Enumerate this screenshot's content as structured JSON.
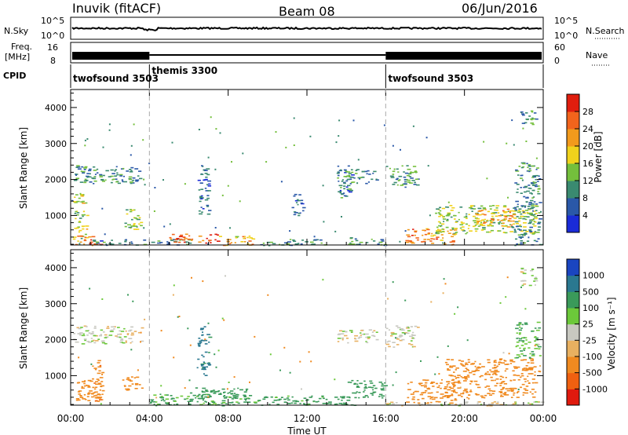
{
  "header": {
    "station": "Inuvik (fitACF)",
    "beam": "Beam 08",
    "date": "06/Jun/2016"
  },
  "noise_panel": {
    "left_label": "N.Sky",
    "right_label": "N.Search",
    "left_ticks": [
      "10^5",
      "10^0"
    ],
    "right_ticks": [
      "10^5",
      "10^0"
    ],
    "right_legend_style": "dotted"
  },
  "freq_panel": {
    "left_label_line1": "Freq.",
    "left_label_line2": "[MHz]",
    "right_label": "Nave",
    "left_ticks": [
      "16",
      "8"
    ],
    "right_ticks": [
      "60",
      "0"
    ],
    "right_legend_style": "dotted"
  },
  "cpid_panel": {
    "label": "CPID",
    "segments": [
      {
        "name": "twofsound 3503",
        "start_hour": 0,
        "end_hour": 4
      },
      {
        "name": "themis 3300",
        "start_hour": 4,
        "end_hour": 16
      },
      {
        "name": "twofsound 3503",
        "start_hour": 16,
        "end_hour": 24
      }
    ]
  },
  "x_axis": {
    "title": "Time UT",
    "ticks": [
      "00:00",
      "04:00",
      "08:00",
      "12:00",
      "16:00",
      "20:00",
      "00:00"
    ],
    "tick_hours": [
      0,
      4,
      8,
      12,
      16,
      20,
      24
    ],
    "range_hours": [
      0,
      24
    ]
  },
  "chart_data": [
    {
      "type": "heatmap",
      "panel": "power",
      "ylabel": "Slant Range [km]",
      "yticks": [
        1000,
        2000,
        3000,
        4000
      ],
      "ylim": [
        180,
        4500
      ],
      "xlim_hours": [
        0,
        24
      ],
      "colorbar_label": "Power [dB]",
      "colorbar_ticks": [
        4,
        8,
        12,
        16,
        20,
        24,
        28
      ],
      "colorbar_range": [
        0,
        32
      ],
      "colorbar_colors": [
        "#1a2bd8",
        "#2a58a8",
        "#3a8a70",
        "#74bf3c",
        "#f0d21c",
        "#f29a1c",
        "#f2641c",
        "#e01e0e"
      ],
      "regions": [
        {
          "x": [
            0.1,
            3.6
          ],
          "y": [
            1900,
            2400
          ],
          "value": 10
        },
        {
          "x": [
            0.1,
            0.8
          ],
          "y": [
            300,
            1600
          ],
          "value": 16
        },
        {
          "x": [
            0.2,
            1.5
          ],
          "y": [
            180,
            450
          ],
          "value": 26
        },
        {
          "x": [
            1.0,
            3.8
          ],
          "y": [
            180,
            350
          ],
          "value": 8
        },
        {
          "x": [
            2.7,
            3.6
          ],
          "y": [
            600,
            1200
          ],
          "value": 14
        },
        {
          "x": [
            4.0,
            6.0
          ],
          "y": [
            180,
            350
          ],
          "value": 9
        },
        {
          "x": [
            5.0,
            7.5
          ],
          "y": [
            250,
            500
          ],
          "value": 26
        },
        {
          "x": [
            7.5,
            9.5
          ],
          "y": [
            180,
            450
          ],
          "value": 20
        },
        {
          "x": [
            6.4,
            7.0
          ],
          "y": [
            1000,
            2400
          ],
          "value": 7
        },
        {
          "x": [
            9.5,
            13.0
          ],
          "y": [
            180,
            350
          ],
          "value": 9
        },
        {
          "x": [
            11.2,
            11.8
          ],
          "y": [
            1000,
            1600
          ],
          "value": 6
        },
        {
          "x": [
            13.5,
            14.3
          ],
          "y": [
            1500,
            2400
          ],
          "value": 8
        },
        {
          "x": [
            14.0,
            16.0
          ],
          "y": [
            180,
            400
          ],
          "value": 11
        },
        {
          "x": [
            13.5,
            15.5
          ],
          "y": [
            1900,
            2300
          ],
          "value": 10
        },
        {
          "x": [
            16.0,
            17.6
          ],
          "y": [
            1800,
            2400
          ],
          "value": 11
        },
        {
          "x": [
            17.0,
            19.5
          ],
          "y": [
            200,
            650
          ],
          "value": 24
        },
        {
          "x": [
            18.5,
            23.6
          ],
          "y": [
            500,
            1300
          ],
          "value": 15
        },
        {
          "x": [
            20.5,
            22.5
          ],
          "y": [
            700,
            1200
          ],
          "value": 22
        },
        {
          "x": [
            22.5,
            23.8
          ],
          "y": [
            180,
            2500
          ],
          "value": 9
        },
        {
          "x": [
            22.8,
            23.6
          ],
          "y": [
            3500,
            4000
          ],
          "value": 10
        }
      ]
    },
    {
      "type": "heatmap",
      "panel": "velocity",
      "ylabel": "Slant Range [km]",
      "yticks": [
        1000,
        2000,
        3000,
        4000
      ],
      "ylim": [
        180,
        4500
      ],
      "xlim_hours": [
        0,
        24
      ],
      "colorbar_label": "Velocity [m s⁻¹]",
      "colorbar_ticks": [
        1000,
        500,
        100,
        25,
        -25,
        -100,
        -500,
        -1000
      ],
      "colorbar_colors": [
        "#1a45c0",
        "#2a7890",
        "#3a9a5a",
        "#6cc83a",
        "#c8c8c0",
        "#e8b060",
        "#f08a20",
        "#f06010",
        "#e01a0e"
      ],
      "regions": [
        {
          "x": [
            0.1,
            3.6
          ],
          "y": [
            1900,
            2400
          ],
          "value": 0
        },
        {
          "x": [
            0.1,
            1.5
          ],
          "y": [
            300,
            900
          ],
          "value": -300
        },
        {
          "x": [
            1.0,
            1.6
          ],
          "y": [
            300,
            1500
          ],
          "value": -400
        },
        {
          "x": [
            2.6,
            3.6
          ],
          "y": [
            600,
            1000
          ],
          "value": -300
        },
        {
          "x": [
            4.0,
            9.5
          ],
          "y": [
            180,
            500
          ],
          "value": 120
        },
        {
          "x": [
            6.0,
            9.0
          ],
          "y": [
            300,
            700
          ],
          "value": 300
        },
        {
          "x": [
            6.4,
            7.0
          ],
          "y": [
            1000,
            2400
          ],
          "value": 700
        },
        {
          "x": [
            9.5,
            14.5
          ],
          "y": [
            180,
            450
          ],
          "value": 150
        },
        {
          "x": [
            13.5,
            15.5
          ],
          "y": [
            1900,
            2300
          ],
          "value": 0
        },
        {
          "x": [
            14.0,
            16.0
          ],
          "y": [
            400,
            900
          ],
          "value": 200
        },
        {
          "x": [
            16.0,
            17.6
          ],
          "y": [
            1800,
            2400
          ],
          "value": 0
        },
        {
          "x": [
            16.0,
            24.0
          ],
          "y": [
            180,
            300
          ],
          "value": 0
        },
        {
          "x": [
            17.0,
            19.5
          ],
          "y": [
            250,
            900
          ],
          "value": -300
        },
        {
          "x": [
            19.0,
            23.6
          ],
          "y": [
            400,
            1500
          ],
          "value": -250
        },
        {
          "x": [
            22.5,
            23.8
          ],
          "y": [
            1500,
            2500
          ],
          "value": 80
        },
        {
          "x": [
            22.8,
            23.6
          ],
          "y": [
            3500,
            4000
          ],
          "value": 0
        }
      ]
    }
  ]
}
